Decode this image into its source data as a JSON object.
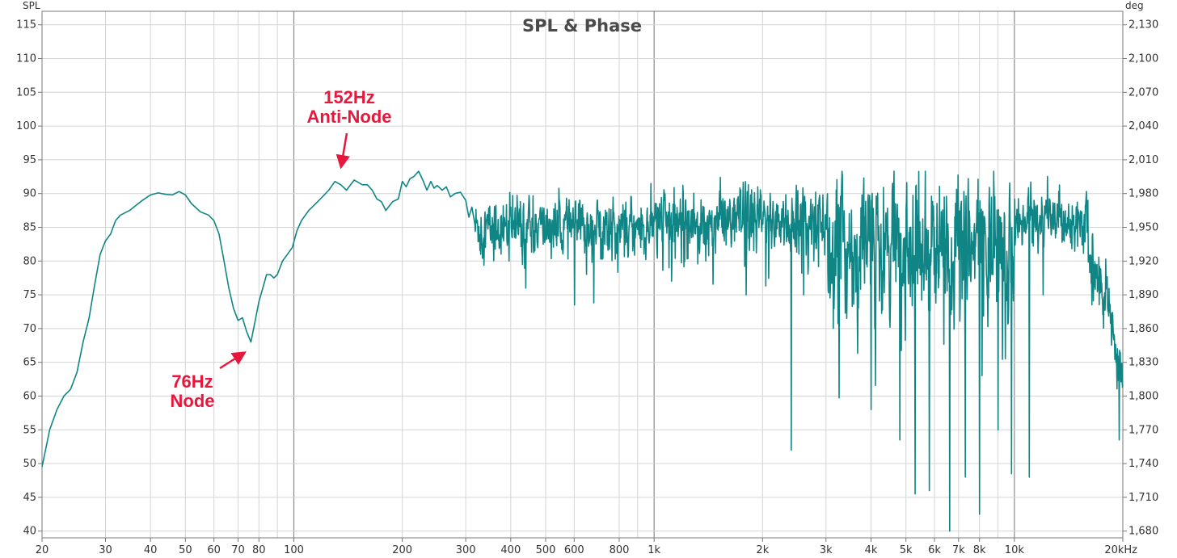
{
  "chart_data": {
    "type": "line",
    "title": "SPL & Phase",
    "y_left_label": "SPL",
    "y_right_label": "deg",
    "x_scale": "log",
    "xlim": [
      20,
      20000
    ],
    "ylim": [
      39,
      117
    ],
    "y_right_lim": [
      1674,
      2142
    ],
    "grid": true,
    "x_ticks": [
      {
        "value": 20,
        "label": "20"
      },
      {
        "value": 30,
        "label": "30"
      },
      {
        "value": 40,
        "label": "40"
      },
      {
        "value": 50,
        "label": "50"
      },
      {
        "value": 60,
        "label": "60"
      },
      {
        "value": 70,
        "label": "70"
      },
      {
        "value": 80,
        "label": "80"
      },
      {
        "value": 100,
        "label": "100"
      },
      {
        "value": 200,
        "label": "200"
      },
      {
        "value": 300,
        "label": "300"
      },
      {
        "value": 400,
        "label": "400"
      },
      {
        "value": 500,
        "label": "500"
      },
      {
        "value": 600,
        "label": "600"
      },
      {
        "value": 800,
        "label": "800"
      },
      {
        "value": 1000,
        "label": "1k"
      },
      {
        "value": 2000,
        "label": "2k"
      },
      {
        "value": 3000,
        "label": "3k"
      },
      {
        "value": 4000,
        "label": "4k"
      },
      {
        "value": 5000,
        "label": "5k"
      },
      {
        "value": 6000,
        "label": "6k"
      },
      {
        "value": 7000,
        "label": "7k"
      },
      {
        "value": 8000,
        "label": "8k"
      },
      {
        "value": 10000,
        "label": "10k"
      },
      {
        "value": 20000,
        "label": "20kHz"
      }
    ],
    "x_minor_ticks": [
      90,
      900,
      9000
    ],
    "y_left_ticks": [
      {
        "value": 40,
        "label": "40"
      },
      {
        "value": 45,
        "label": "45"
      },
      {
        "value": 50,
        "label": "50"
      },
      {
        "value": 55,
        "label": "55"
      },
      {
        "value": 60,
        "label": "60"
      },
      {
        "value": 65,
        "label": "65"
      },
      {
        "value": 70,
        "label": "70"
      },
      {
        "value": 75,
        "label": "75"
      },
      {
        "value": 80,
        "label": "80"
      },
      {
        "value": 85,
        "label": "85"
      },
      {
        "value": 90,
        "label": "90"
      },
      {
        "value": 95,
        "label": "95"
      },
      {
        "value": 100,
        "label": "100"
      },
      {
        "value": 105,
        "label": "105"
      },
      {
        "value": 110,
        "label": "110"
      },
      {
        "value": 115,
        "label": "115"
      }
    ],
    "y_right_ticks": [
      {
        "value": 1680,
        "label": "1,680"
      },
      {
        "value": 1710,
        "label": "1,710"
      },
      {
        "value": 1740,
        "label": "1,740"
      },
      {
        "value": 1770,
        "label": "1,770"
      },
      {
        "value": 1800,
        "label": "1,800"
      },
      {
        "value": 1830,
        "label": "1,830"
      },
      {
        "value": 1860,
        "label": "1,860"
      },
      {
        "value": 1890,
        "label": "1,890"
      },
      {
        "value": 1920,
        "label": "1,920"
      },
      {
        "value": 1950,
        "label": "1,950"
      },
      {
        "value": 1980,
        "label": "1,980"
      },
      {
        "value": 2010,
        "label": "2,010"
      },
      {
        "value": 2040,
        "label": "2,040"
      },
      {
        "value": 2070,
        "label": "2,070"
      },
      {
        "value": 2100,
        "label": "2,100"
      },
      {
        "value": 2130,
        "label": "2,130"
      }
    ],
    "series": [
      {
        "color": "#108585",
        "smooth_points": [
          [
            20,
            49.5
          ],
          [
            21,
            55
          ],
          [
            22,
            58
          ],
          [
            23,
            60
          ],
          [
            24,
            61
          ],
          [
            25,
            63.5
          ],
          [
            26,
            68
          ],
          [
            27,
            71.5
          ],
          [
            28,
            76.5
          ],
          [
            29,
            81
          ],
          [
            30,
            83
          ],
          [
            31,
            84
          ],
          [
            32,
            86
          ],
          [
            33,
            86.8
          ],
          [
            35,
            87.5
          ],
          [
            38,
            89
          ],
          [
            40,
            89.8
          ],
          [
            42,
            90.1
          ],
          [
            44,
            89.9
          ],
          [
            46,
            89.8
          ],
          [
            48,
            90.3
          ],
          [
            50,
            89.8
          ],
          [
            52,
            88.5
          ],
          [
            55,
            87.3
          ],
          [
            58,
            86.8
          ],
          [
            60,
            86
          ],
          [
            62,
            84
          ],
          [
            64,
            80
          ],
          [
            66,
            76
          ],
          [
            68,
            73
          ],
          [
            70,
            71.2
          ],
          [
            72,
            71.6
          ],
          [
            74,
            69.5
          ],
          [
            76,
            68
          ],
          [
            78,
            71
          ],
          [
            80,
            74
          ],
          [
            82,
            76
          ],
          [
            84,
            78
          ],
          [
            86,
            78
          ],
          [
            88,
            77.5
          ],
          [
            90,
            78
          ],
          [
            93,
            80
          ],
          [
            96,
            81
          ],
          [
            99,
            82
          ],
          [
            102,
            84.5
          ],
          [
            105,
            86
          ],
          [
            110,
            87.5
          ],
          [
            115,
            88.5
          ],
          [
            120,
            89.5
          ],
          [
            125,
            90.5
          ],
          [
            130,
            91.8
          ],
          [
            135,
            91.3
          ],
          [
            140,
            90.5
          ],
          [
            147,
            92
          ],
          [
            155,
            91.3
          ],
          [
            160,
            91.3
          ],
          [
            165,
            90.5
          ],
          [
            170,
            89.2
          ],
          [
            175,
            88.8
          ],
          [
            180,
            87.5
          ],
          [
            188,
            88.8
          ],
          [
            195,
            89.2
          ],
          [
            200,
            91.8
          ],
          [
            205,
            91
          ],
          [
            210,
            92.2
          ],
          [
            215,
            92.5
          ],
          [
            222,
            93.3
          ],
          [
            228,
            92
          ],
          [
            234,
            90.5
          ],
          [
            240,
            91.8
          ],
          [
            245,
            90.8
          ],
          [
            250,
            91.2
          ],
          [
            258,
            90.5
          ],
          [
            265,
            91
          ],
          [
            272,
            89.5
          ],
          [
            280,
            90
          ],
          [
            290,
            90.2
          ],
          [
            300,
            89
          ],
          [
            306,
            86.5
          ],
          [
            312,
            88
          ],
          [
            318,
            85.5
          ]
        ],
        "noisy_segments": [
          {
            "from": 318,
            "to": 1000,
            "center": 85,
            "sigma": 2.8,
            "dips": [
              [
                330,
                81
              ],
              [
                395,
                80
              ],
              [
                440,
                76
              ],
              [
                600,
                73.5
              ],
              [
                680,
                73.8
              ]
            ]
          },
          {
            "from": 1000,
            "to": 3000,
            "center": 86,
            "sigma": 3.4,
            "dips": [
              [
                1100,
                79
              ],
              [
                1800,
                75
              ],
              [
                2400,
                52
              ],
              [
                2600,
                75
              ],
              [
                3200,
                63.5
              ]
            ]
          },
          {
            "from": 3000,
            "to": 10000,
            "center": 82,
            "sigma": 6.8,
            "dips": [
              [
                4000,
                58
              ],
              [
                4800,
                53.5
              ],
              [
                5300,
                45.5
              ],
              [
                5800,
                46
              ],
              [
                6600,
                40
              ],
              [
                7300,
                48
              ],
              [
                8000,
                42.5
              ],
              [
                9000,
                55
              ],
              [
                9800,
                48.5
              ]
            ]
          },
          {
            "from": 10000,
            "to": 16000,
            "center": 86.5,
            "sigma": 2.6,
            "dips": [
              [
                11000,
                48
              ],
              [
                12000,
                75
              ]
            ]
          },
          {
            "from": 16000,
            "to": 20000,
            "center": 80,
            "sigma": 3,
            "dips": [
              [
                19500,
                53.5
              ]
            ],
            "trend_end": 62
          }
        ]
      }
    ],
    "annotations": [
      {
        "lines": [
          "152Hz",
          "Anti-Node"
        ],
        "points_to": [
          132,
          95
        ]
      },
      {
        "lines": [
          "76Hz",
          "Node"
        ],
        "points_to": [
          76,
          66
        ]
      }
    ]
  }
}
